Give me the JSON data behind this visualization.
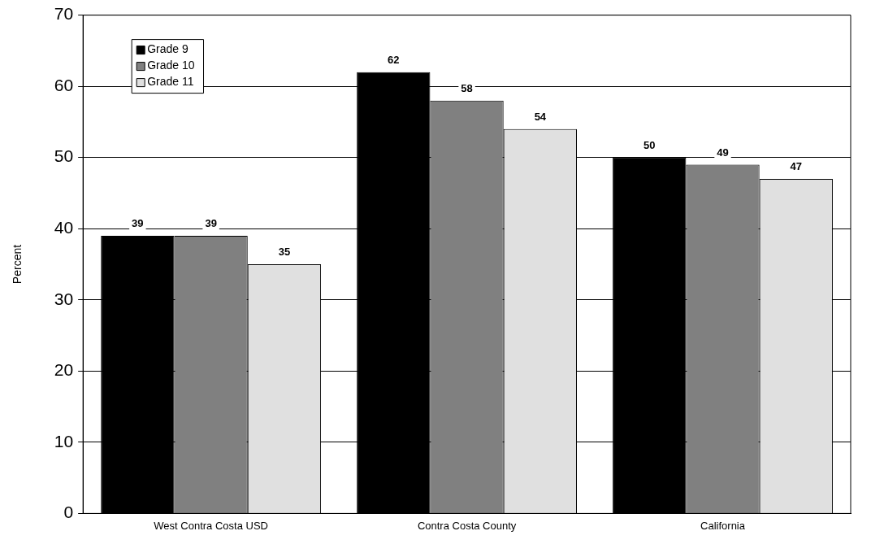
{
  "chart_data": {
    "type": "bar",
    "ylabel": "Percent",
    "categories": [
      "West Contra Costa USD",
      "Contra Costa County",
      "California"
    ],
    "series": [
      {
        "name": "Grade 9",
        "color": "#000000",
        "values": [
          39,
          62,
          50
        ]
      },
      {
        "name": "Grade 10",
        "color": "#808080",
        "values": [
          39,
          58,
          49
        ]
      },
      {
        "name": "Grade 11",
        "color": "#e0e0e0",
        "values": [
          35,
          54,
          47
        ]
      }
    ],
    "ylim": [
      0,
      70
    ],
    "yticks": [
      0,
      10,
      20,
      30,
      40,
      50,
      60,
      70
    ],
    "grid": "y",
    "legend": "top left",
    "data_labels": true
  }
}
